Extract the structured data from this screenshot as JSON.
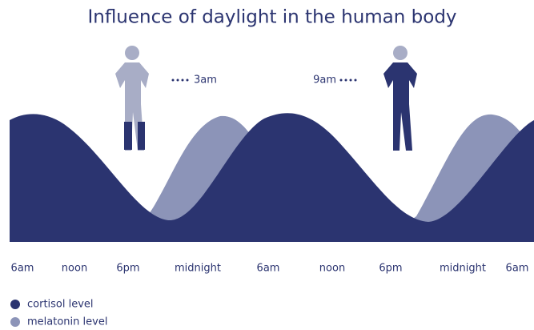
{
  "title": "Influence of daylight in the human body",
  "annotations": [
    "3am",
    "9am"
  ],
  "time_labels": [
    "6am",
    "noon",
    "6pm",
    "midnight",
    "6am",
    "noon",
    "6pm",
    "midnight",
    "6am"
  ],
  "legend": [
    {
      "label": "cortisol level",
      "color": "#2b3470"
    },
    {
      "label": "melatonin level",
      "color": "#8c94b8"
    }
  ]
}
